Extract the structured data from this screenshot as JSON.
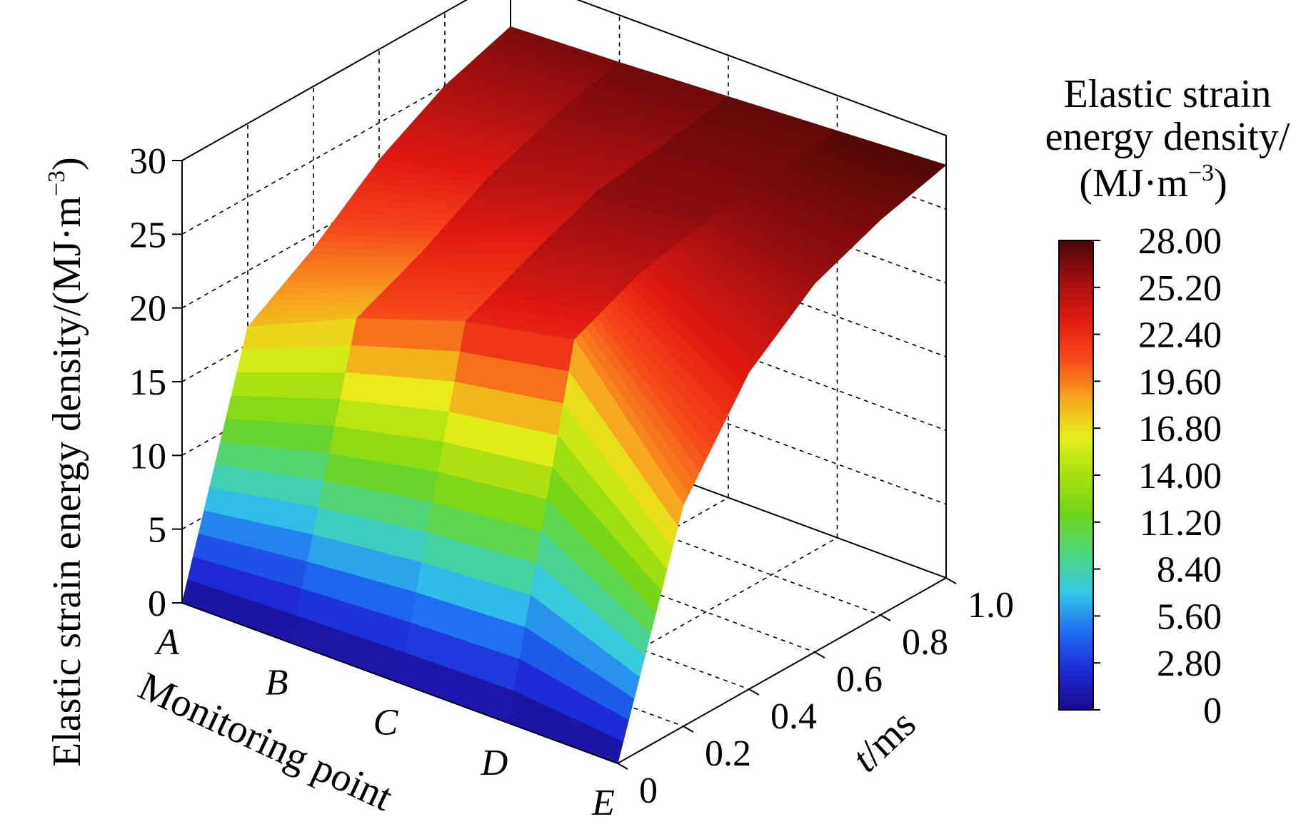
{
  "chart_data": {
    "type": "surface",
    "y_axis": {
      "title": "Elastic strain energy density/(MJ·m",
      "title_unit_exponent": "−3",
      "title_close": ")",
      "range": [
        0,
        30
      ],
      "ticks": [
        "0",
        "5",
        "10",
        "15",
        "20",
        "25",
        "30"
      ]
    },
    "x_axis": {
      "title": "Monitoring point",
      "categories": [
        "A",
        "B",
        "C",
        "D",
        "E"
      ]
    },
    "t_axis": {
      "title_var": "t",
      "title_unit": "/ms",
      "range": [
        0,
        1.0
      ],
      "ticks": [
        "0",
        "0.2",
        "0.4",
        "0.6",
        "0.8",
        "1.0"
      ]
    },
    "colorbar": {
      "title_lines": [
        "Elastic strain",
        "energy density/"
      ],
      "title_unit": "(MJ·m",
      "title_unit_exponent": "−3",
      "title_unit_close": ")",
      "range": [
        0,
        28
      ],
      "ticks": [
        "28.00",
        "25.20",
        "22.40",
        "19.60",
        "16.80",
        "14.00",
        "11.20",
        "8.40",
        "5.60",
        "2.80",
        "0"
      ],
      "colormap": [
        "#1a0a8c",
        "#1e2ad6",
        "#1f6ef2",
        "#33c9e6",
        "#4fd67e",
        "#6ed41a",
        "#a8e010",
        "#e6ee1a",
        "#f7a21e",
        "#f6461a",
        "#e01a12",
        "#a10f0f",
        "#4a0606"
      ]
    },
    "surface": {
      "t": [
        0,
        0.2,
        0.4,
        0.6,
        0.8,
        1.0
      ],
      "values_by_point": {
        "A": [
          0,
          16.2,
          19.0,
          22.5,
          25.0,
          26.5
        ],
        "B": [
          0,
          19.5,
          21.5,
          24.0,
          25.6,
          26.8
        ],
        "C": [
          0,
          22.0,
          24.0,
          25.8,
          26.4,
          27.2
        ],
        "D": [
          0,
          23.5,
          25.5,
          26.5,
          27.0,
          27.6
        ],
        "E": [
          0,
          15.0,
          21.5,
          25.0,
          26.8,
          28.0
        ]
      }
    }
  }
}
